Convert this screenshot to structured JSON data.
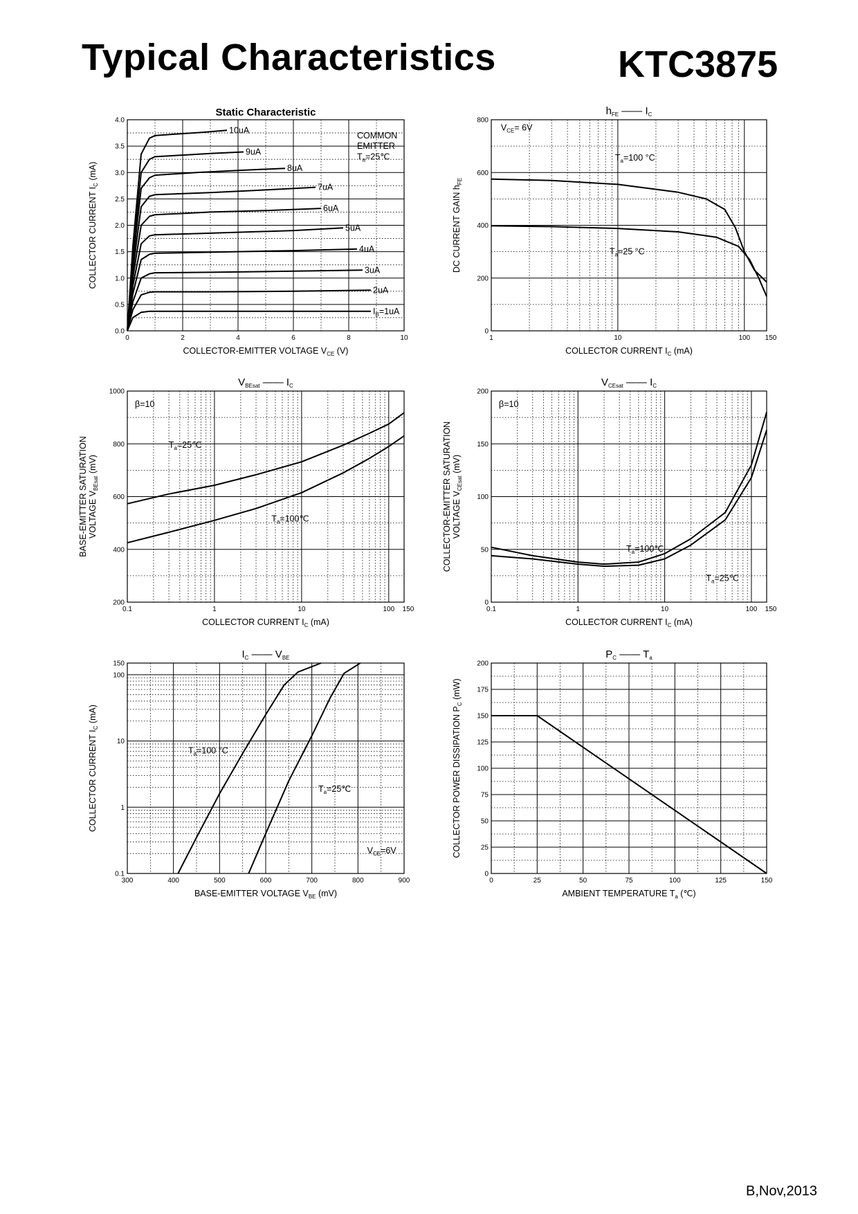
{
  "header": {
    "title": "Typical Characteristics",
    "part_number": "KTC3875"
  },
  "footer": {
    "revision": "B,Nov,2013"
  },
  "chart_data": [
    {
      "id": "static",
      "type": "line",
      "title": "Static Characteristic",
      "xlabel": "COLLECTOR-EMITTER VOLTAGE",
      "xsym": "V",
      "xsub": "CE",
      "xunit": "(V)",
      "ylabel": "COLLECTOR CURRENT",
      "ysym": "I",
      "ysub": "C",
      "yunit": "(mA)",
      "xscale": "linear",
      "yscale": "linear",
      "xlim": [
        0,
        10
      ],
      "ylim": [
        0,
        4.0
      ],
      "xticks": [
        0,
        2,
        4,
        6,
        8,
        10
      ],
      "xtick_labels": [
        "0",
        "2",
        "4",
        "6",
        "8",
        "10"
      ],
      "yticks": [
        0,
        0.5,
        1.0,
        1.5,
        2.0,
        2.5,
        3.0,
        3.5,
        4.0
      ],
      "ytick_labels": [
        "0.0",
        "0.5",
        "1.0",
        "1.5",
        "2.0",
        "2.5",
        "3.0",
        "3.5",
        "4.0"
      ],
      "xminor": [
        1,
        3,
        5,
        7,
        9
      ],
      "yminor": [
        0.25,
        0.75,
        1.25,
        1.75,
        2.25,
        2.75,
        3.25,
        3.75
      ],
      "legend_notes": [
        "COMMON",
        "EMITTER"
      ],
      "note_ta": {
        "sym": "T",
        "sub": "a",
        "rest": "=25℃"
      },
      "series": [
        {
          "name": "1uA",
          "label_prefix": "I",
          "label_sub": "B",
          "label_rest": "=1uA",
          "x": [
            0,
            0.2,
            0.5,
            0.8,
            1.0,
            3,
            6,
            8.8
          ],
          "y": [
            0,
            0.25,
            0.35,
            0.37,
            0.37,
            0.37,
            0.37,
            0.37
          ]
        },
        {
          "name": "2uA",
          "x": [
            0,
            0.2,
            0.5,
            0.8,
            1.0,
            3,
            6,
            8.8
          ],
          "y": [
            0,
            0.4,
            0.68,
            0.73,
            0.74,
            0.74,
            0.75,
            0.77
          ]
        },
        {
          "name": "3uA",
          "x": [
            0,
            0.2,
            0.5,
            0.8,
            1.0,
            3,
            6,
            8.5
          ],
          "y": [
            0,
            0.55,
            1.0,
            1.08,
            1.1,
            1.11,
            1.13,
            1.15
          ]
        },
        {
          "name": "4uA",
          "x": [
            0,
            0.2,
            0.5,
            0.8,
            1.0,
            3,
            6,
            8.3
          ],
          "y": [
            0,
            0.7,
            1.35,
            1.45,
            1.47,
            1.49,
            1.52,
            1.55
          ]
        },
        {
          "name": "5uA",
          "x": [
            0,
            0.2,
            0.5,
            0.8,
            1.0,
            3,
            6,
            7.8
          ],
          "y": [
            0,
            0.85,
            1.65,
            1.8,
            1.82,
            1.85,
            1.9,
            1.95
          ]
        },
        {
          "name": "6uA",
          "x": [
            0,
            0.2,
            0.5,
            0.8,
            1.0,
            3,
            5,
            7.0
          ],
          "y": [
            0,
            1.0,
            2.0,
            2.17,
            2.2,
            2.25,
            2.28,
            2.32
          ]
        },
        {
          "name": "7uA",
          "x": [
            0,
            0.2,
            0.5,
            0.8,
            1.0,
            3,
            5,
            6.8
          ],
          "y": [
            0,
            1.15,
            2.35,
            2.55,
            2.58,
            2.62,
            2.67,
            2.72
          ]
        },
        {
          "name": "8uA",
          "x": [
            0,
            0.2,
            0.5,
            0.8,
            1.0,
            2.5,
            4,
            5.7
          ],
          "y": [
            0,
            1.3,
            2.7,
            2.9,
            2.95,
            3.0,
            3.04,
            3.08
          ]
        },
        {
          "name": "9uA",
          "x": [
            0,
            0.2,
            0.5,
            0.8,
            1.0,
            2,
            3,
            4.2
          ],
          "y": [
            0,
            1.45,
            3.0,
            3.25,
            3.3,
            3.33,
            3.36,
            3.39
          ]
        },
        {
          "name": "10uA",
          "x": [
            0,
            0.2,
            0.5,
            0.8,
            1.0,
            1.8,
            2.7,
            3.6
          ],
          "y": [
            0,
            1.6,
            3.35,
            3.65,
            3.7,
            3.73,
            3.76,
            3.8
          ]
        }
      ]
    },
    {
      "id": "hfe",
      "type": "line",
      "title_sym": "h",
      "title_sub": "FE",
      "title_sym2": "I",
      "title_sub2": "C",
      "xlabel": "COLLECTOR CURRENT",
      "xsym": "I",
      "xsub": "C",
      "xunit": "(mA)",
      "ylabel": "DC CURRENT GAIN",
      "ysym": "h",
      "ysub": "FE",
      "yunit": "",
      "xscale": "log",
      "yscale": "linear",
      "xlim": [
        1,
        150
      ],
      "ylim": [
        0,
        800
      ],
      "xticks": [
        1,
        10,
        100,
        150
      ],
      "xtick_labels": [
        "1",
        "10",
        "100",
        "150"
      ],
      "yticks": [
        0,
        200,
        400,
        600,
        800
      ],
      "ytick_labels": [
        "0",
        "200",
        "400",
        "600",
        "800"
      ],
      "yminor": [
        100,
        300,
        500,
        700
      ],
      "note_cond": {
        "sym": "V",
        "sub": "CE",
        "rest": "= 6V"
      },
      "series": [
        {
          "name": "Ta=100°C",
          "label_sym": "T",
          "label_sub": "a",
          "label_rest": "=100 °C",
          "x": [
            1,
            3,
            10,
            30,
            50,
            70,
            85,
            100,
            120,
            150
          ],
          "y": [
            575,
            570,
            555,
            525,
            500,
            460,
            390,
            300,
            230,
            185
          ]
        },
        {
          "name": "Ta=25°C",
          "label_sym": "T",
          "label_sub": "a",
          "label_rest": "=25 °C",
          "x": [
            1,
            3,
            10,
            30,
            60,
            90,
            110,
            130,
            150
          ],
          "y": [
            398,
            395,
            388,
            375,
            355,
            320,
            270,
            200,
            130
          ]
        }
      ]
    },
    {
      "id": "vbesat",
      "type": "line",
      "title_sym": "V",
      "title_sub": "BEsat",
      "title_sym2": "I",
      "title_sub2": "C",
      "xlabel": "COLLECTOR CURRENT",
      "xsym": "I",
      "xsub": "C",
      "xunit": "(mA)",
      "ylabel": "BASE-EMITTER SATURATION",
      "ylabel2": "VOLTAGE",
      "ysym": "V",
      "ysub": "BEsat",
      "yunit": "(mV)",
      "xscale": "log",
      "yscale": "linear",
      "xlim": [
        0.1,
        150
      ],
      "ylim": [
        200,
        1000
      ],
      "xticks": [
        0.1,
        1,
        10,
        100,
        150
      ],
      "xtick_labels": [
        "0.1",
        "1",
        "10",
        "100",
        "150"
      ],
      "yticks": [
        200,
        400,
        600,
        800,
        1000
      ],
      "ytick_labels": [
        "200",
        "400",
        "600",
        "800",
        "1000"
      ],
      "yminor": [
        300,
        500,
        700,
        900
      ],
      "note_cond": {
        "sym": "β",
        "sub": "",
        "rest": "=10"
      },
      "series": [
        {
          "name": "Ta=25°C",
          "label_sym": "T",
          "label_sub": "a",
          "label_rest": "=25℃",
          "x": [
            0.1,
            0.3,
            1,
            3,
            10,
            30,
            60,
            100,
            150
          ],
          "y": [
            573,
            610,
            643,
            683,
            732,
            795,
            840,
            875,
            918
          ]
        },
        {
          "name": "Ta=100°C",
          "label_sym": "T",
          "label_sub": "a",
          "label_rest": "=100℃",
          "x": [
            0.1,
            0.3,
            1,
            3,
            10,
            30,
            60,
            100,
            150
          ],
          "y": [
            425,
            465,
            510,
            555,
            615,
            690,
            745,
            790,
            830
          ]
        }
      ]
    },
    {
      "id": "vcesat",
      "type": "line",
      "title_sym": "V",
      "title_sub": "CEsat",
      "title_sym2": "I",
      "title_sub2": "C",
      "xlabel": "COLLECTOR CURRENT",
      "xsym": "I",
      "xsub": "C",
      "xunit": "(mA)",
      "ylabel": "COLLECTOR-EMITTER SATURATION",
      "ylabel2": "VOLTAGE",
      "ysym": "V",
      "ysub": "CEsat",
      "yunit": "(mV)",
      "xscale": "log",
      "yscale": "linear",
      "xlim": [
        0.1,
        150
      ],
      "ylim": [
        0,
        200
      ],
      "xticks": [
        0.1,
        1,
        10,
        100,
        150
      ],
      "xtick_labels": [
        "0.1",
        "1",
        "10",
        "100",
        "150"
      ],
      "yticks": [
        0,
        50,
        100,
        150,
        200
      ],
      "ytick_labels": [
        "0",
        "50",
        "100",
        "150",
        "200"
      ],
      "yminor": [
        25,
        75,
        125,
        175
      ],
      "note_cond": {
        "sym": "β",
        "sub": "",
        "rest": "=10"
      },
      "series": [
        {
          "name": "Ta=100°C",
          "label_sym": "T",
          "label_sub": "a",
          "label_rest": "=100℃",
          "x": [
            0.1,
            0.3,
            1,
            2,
            5,
            10,
            20,
            50,
            100,
            150
          ],
          "y": [
            52,
            44,
            38,
            36,
            38,
            46,
            60,
            85,
            130,
            180
          ]
        },
        {
          "name": "Ta=25°C",
          "label_sym": "T",
          "label_sub": "a",
          "label_rest": "=25℃",
          "x": [
            0.1,
            0.3,
            1,
            2,
            5,
            10,
            20,
            50,
            100,
            150
          ],
          "y": [
            44,
            41,
            36,
            34,
            35,
            41,
            54,
            78,
            118,
            163
          ]
        }
      ]
    },
    {
      "id": "icvbe",
      "type": "line",
      "title_sym": "I",
      "title_sub": "C",
      "title_sym2": "V",
      "title_sub2": "BE",
      "xlabel": "BASE-EMITTER VOLTAGE",
      "xsym": "V",
      "xsub": "BE",
      "xunit": "(mV)",
      "ylabel": "COLLECTOR CURRENT",
      "ysym": "I",
      "ysub": "C",
      "yunit": "(mA)",
      "xscale": "linear",
      "yscale": "log",
      "xlim": [
        300,
        900
      ],
      "ylim": [
        0.1,
        150
      ],
      "xticks": [
        300,
        400,
        500,
        600,
        700,
        800,
        900
      ],
      "xtick_labels": [
        "300",
        "400",
        "500",
        "600",
        "700",
        "800",
        "900"
      ],
      "xminor": [
        350,
        450,
        550,
        650,
        750,
        850
      ],
      "yticks": [
        0.1,
        1,
        10,
        100,
        150
      ],
      "ytick_labels": [
        "0.1",
        "1",
        "10",
        "100",
        "150"
      ],
      "note_cond": {
        "sym": "V",
        "sub": "CE",
        "rest": "=6V"
      },
      "series": [
        {
          "name": "Ta=100°C",
          "label_sym": "T",
          "label_sub": "a",
          "label_rest": "=100 °C",
          "x": [
            410,
            450,
            500,
            550,
            600,
            640,
            670,
            720
          ],
          "y": [
            0.1,
            0.35,
            1.6,
            6.5,
            25,
            70,
            110,
            150
          ]
        },
        {
          "name": "Ta=25°C",
          "label_sym": "T",
          "label_sub": "a",
          "label_rest": "=25℃",
          "x": [
            563,
            600,
            650,
            700,
            740,
            770,
            805
          ],
          "y": [
            0.1,
            0.4,
            2.5,
            12,
            45,
            105,
            150
          ]
        }
      ]
    },
    {
      "id": "pcta",
      "type": "line",
      "title_sym": "P",
      "title_sub": "C",
      "title_sym2": "T",
      "title_sub2": "a",
      "xlabel": "AMBIENT TEMPERATURE",
      "xsym": "T",
      "xsub": "a",
      "xunit": "(℃)",
      "ylabel": "COLLECTOR POWER DISSIPATION",
      "ysym": "P",
      "ysub": "C",
      "yunit": "(mW)",
      "xscale": "linear",
      "yscale": "linear",
      "xlim": [
        0,
        150
      ],
      "ylim": [
        0,
        200
      ],
      "xticks": [
        0,
        25,
        50,
        75,
        100,
        125,
        150
      ],
      "xtick_labels": [
        "0",
        "25",
        "50",
        "75",
        "100",
        "125",
        "150"
      ],
      "xminor": [
        12.5,
        37.5,
        62.5,
        87.5,
        112.5,
        137.5
      ],
      "yticks": [
        0,
        25,
        50,
        75,
        100,
        125,
        150,
        175,
        200
      ],
      "ytick_labels": [
        "0",
        "25",
        "50",
        "75",
        "100",
        "125",
        "150",
        "175",
        "200"
      ],
      "yminor": [
        12.5,
        37.5,
        62.5,
        87.5,
        112.5,
        137.5,
        162.5,
        187.5
      ],
      "series": [
        {
          "name": "Pc",
          "x": [
            0,
            25,
            150
          ],
          "y": [
            150,
            150,
            0
          ]
        }
      ]
    }
  ]
}
